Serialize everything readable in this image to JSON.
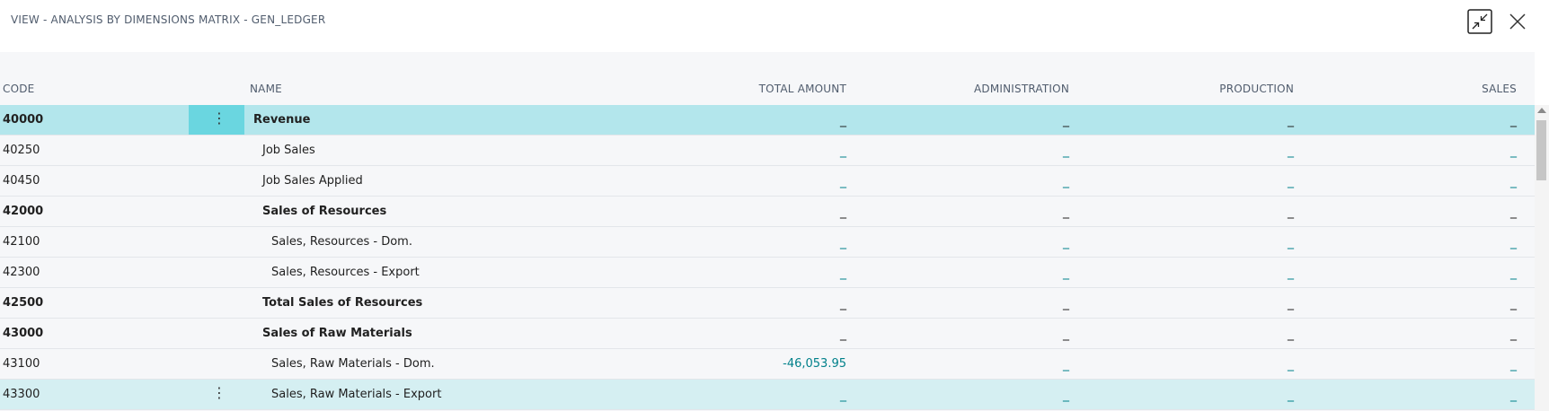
{
  "window": {
    "title": "VIEW - ANALYSIS BY DIMENSIONS MATRIX - GEN_LEDGER",
    "collapse_icon": "collapse-arrows-icon",
    "close_icon": "close-icon"
  },
  "columns": {
    "code": "CODE",
    "name": "NAME",
    "total_amount": "TOTAL AMOUNT",
    "administration": "ADMINISTRATION",
    "production": "PRODUCTION",
    "sales": "SALES"
  },
  "row_menu_icon": "⋮",
  "rows": [
    {
      "code": "40000",
      "name": "Revenue",
      "total": "_",
      "admin": "_",
      "production": "_",
      "sales": "_"
    },
    {
      "code": "40250",
      "name": "Job Sales",
      "total": "_",
      "admin": "_",
      "production": "_",
      "sales": "_"
    },
    {
      "code": "40450",
      "name": "Job Sales Applied",
      "total": "_",
      "admin": "_",
      "production": "_",
      "sales": "_"
    },
    {
      "code": "42000",
      "name": "Sales of Resources",
      "total": "_",
      "admin": "_",
      "production": "_",
      "sales": "_"
    },
    {
      "code": "42100",
      "name": "Sales, Resources - Dom.",
      "total": "_",
      "admin": "_",
      "production": "_",
      "sales": "_"
    },
    {
      "code": "42300",
      "name": "Sales, Resources - Export",
      "total": "_",
      "admin": "_",
      "production": "_",
      "sales": "_"
    },
    {
      "code": "42500",
      "name": "Total Sales of Resources",
      "total": "_",
      "admin": "_",
      "production": "_",
      "sales": "_"
    },
    {
      "code": "43000",
      "name": "Sales of Raw Materials",
      "total": "_",
      "admin": "_",
      "production": "_",
      "sales": "_"
    },
    {
      "code": "43100",
      "name": "Sales, Raw Materials - Dom.",
      "total": "-46,053.95",
      "admin": "_",
      "production": "_",
      "sales": "_"
    },
    {
      "code": "43300",
      "name": "Sales, Raw Materials - Export",
      "total": "_",
      "admin": "_",
      "production": "_",
      "sales": "_"
    }
  ],
  "colors": {
    "selected_row": "#b3e6ec",
    "selected_menu": "#6ad6e0",
    "hover_row": "#d5eff2",
    "link": "#00808a",
    "header_text": "#505c6d"
  }
}
